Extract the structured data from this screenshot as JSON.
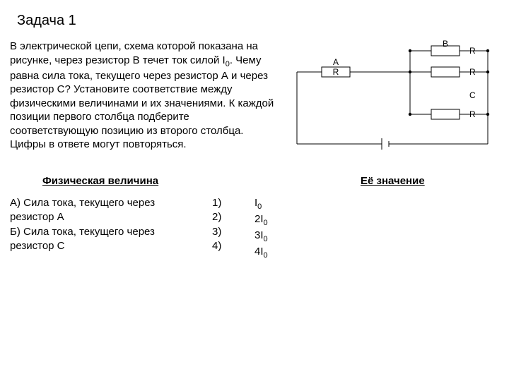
{
  "title": "Задача 1",
  "problem": "В электрической цепи, схема которой показана на рисунке, через резистор В течет ток силой I<sub class='sub'>0</sub>. Чему равна сила тока, текущего через резистор А и через резистор С? Установите соответствие между физическими величинами и их значениями. К каждой позиции первого столбца подберите соответствующую позицию из второго столбца. Цифры в ответе могут повторяться.",
  "headers": {
    "left": "Физическая величина",
    "right": "Её значение"
  },
  "options_a": [
    "А) Сила тока, текущего через резистор А",
    "Б) Сила тока, текущего через резистор С"
  ],
  "options_n": [
    "1)",
    "2)",
    "3)",
    "4)"
  ],
  "options_v": [
    "I<sub class='sub'>0</sub>",
    "2I<sub class='sub'>0</sub>",
    "3I<sub class='sub'>0</sub>",
    "4I<sub class='sub'>0</sub>"
  ],
  "circuit": {
    "stroke": "#000000",
    "stroke_width": 1,
    "font_size": 12,
    "labels": {
      "A": "A",
      "B": "B",
      "C": "C",
      "R": "R"
    },
    "resistor": {
      "w": 40,
      "h": 14
    },
    "junction_r": 2.2
  }
}
